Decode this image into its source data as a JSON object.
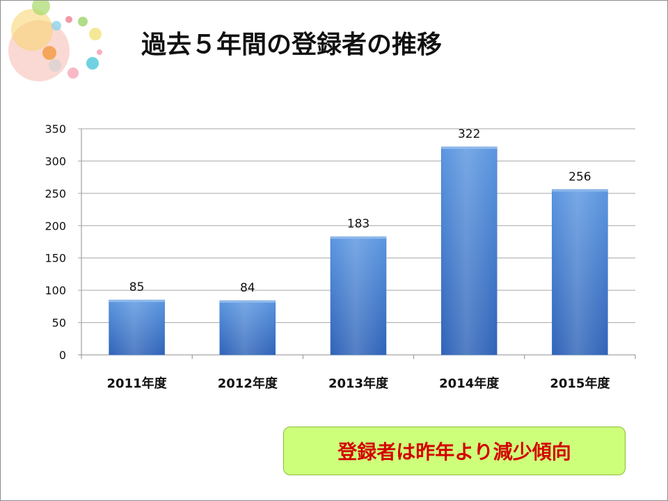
{
  "slide": {
    "title": "過去５年間の登録者の推移",
    "note": "登録者は昨年より減少傾向"
  },
  "colors": {
    "bar": "#4a86d6",
    "bar_dark": "#2a5db0",
    "grid": "#a6a6a6",
    "note_bg": "#cdff7a",
    "note_text": "#d40000"
  },
  "chart_data": {
    "type": "bar",
    "title": "",
    "xlabel": "",
    "ylabel": "",
    "categories": [
      "2011年度",
      "2012年度",
      "2013年度",
      "2014年度",
      "2015年度"
    ],
    "values": [
      85,
      84,
      183,
      322,
      256
    ],
    "ylim": [
      0,
      350
    ],
    "yticks": [
      0,
      50,
      100,
      150,
      200,
      250,
      300,
      350
    ],
    "grid": true,
    "legend": "none"
  }
}
